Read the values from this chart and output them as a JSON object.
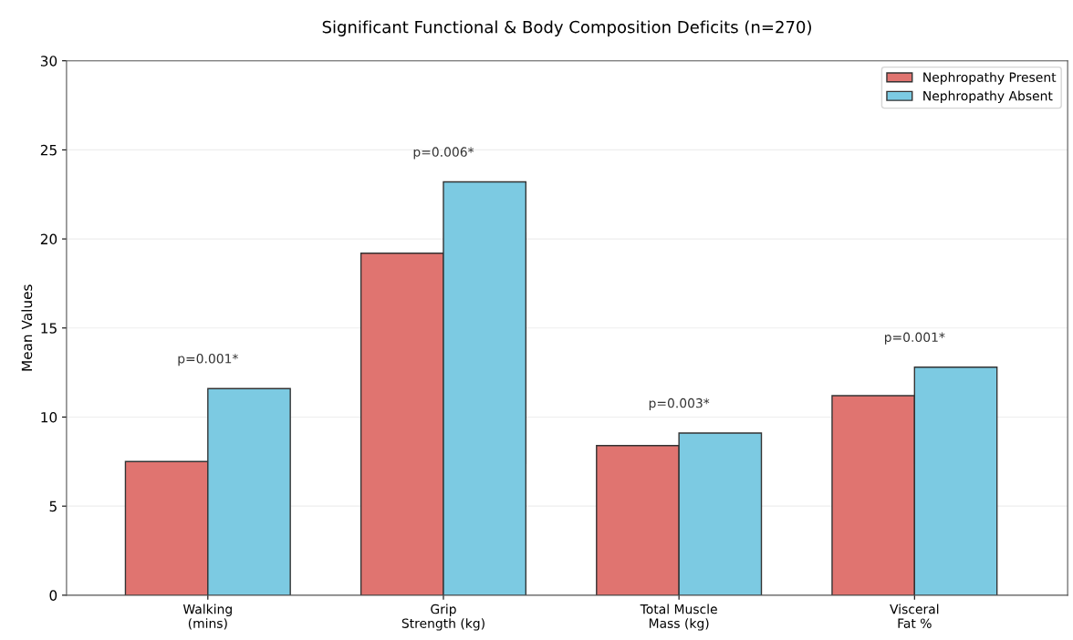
{
  "chart_data": {
    "type": "bar",
    "title": "Significant Functional & Body Composition Deficits (n=270)",
    "ylabel": "Mean Values",
    "categories": [
      "Walking\n(mins)",
      "Grip\nStrength (kg)",
      "Total Muscle\nMass (kg)",
      "Visceral\nFat %"
    ],
    "series": [
      {
        "name": "Nephropathy Present",
        "color": "#e07470",
        "values": [
          7.5,
          19.2,
          8.4,
          11.2
        ]
      },
      {
        "name": "Nephropathy Absent",
        "color": "#7ccae2",
        "values": [
          11.6,
          23.2,
          9.1,
          12.8
        ]
      }
    ],
    "ylim": [
      0,
      30
    ],
    "yticks": [
      0,
      5,
      10,
      15,
      20,
      25,
      30
    ],
    "grid": "y",
    "legend": "top right",
    "annotations": [
      "p=0.001*",
      "p=0.006*",
      "p=0.003*",
      "p=0.001*"
    ]
  }
}
